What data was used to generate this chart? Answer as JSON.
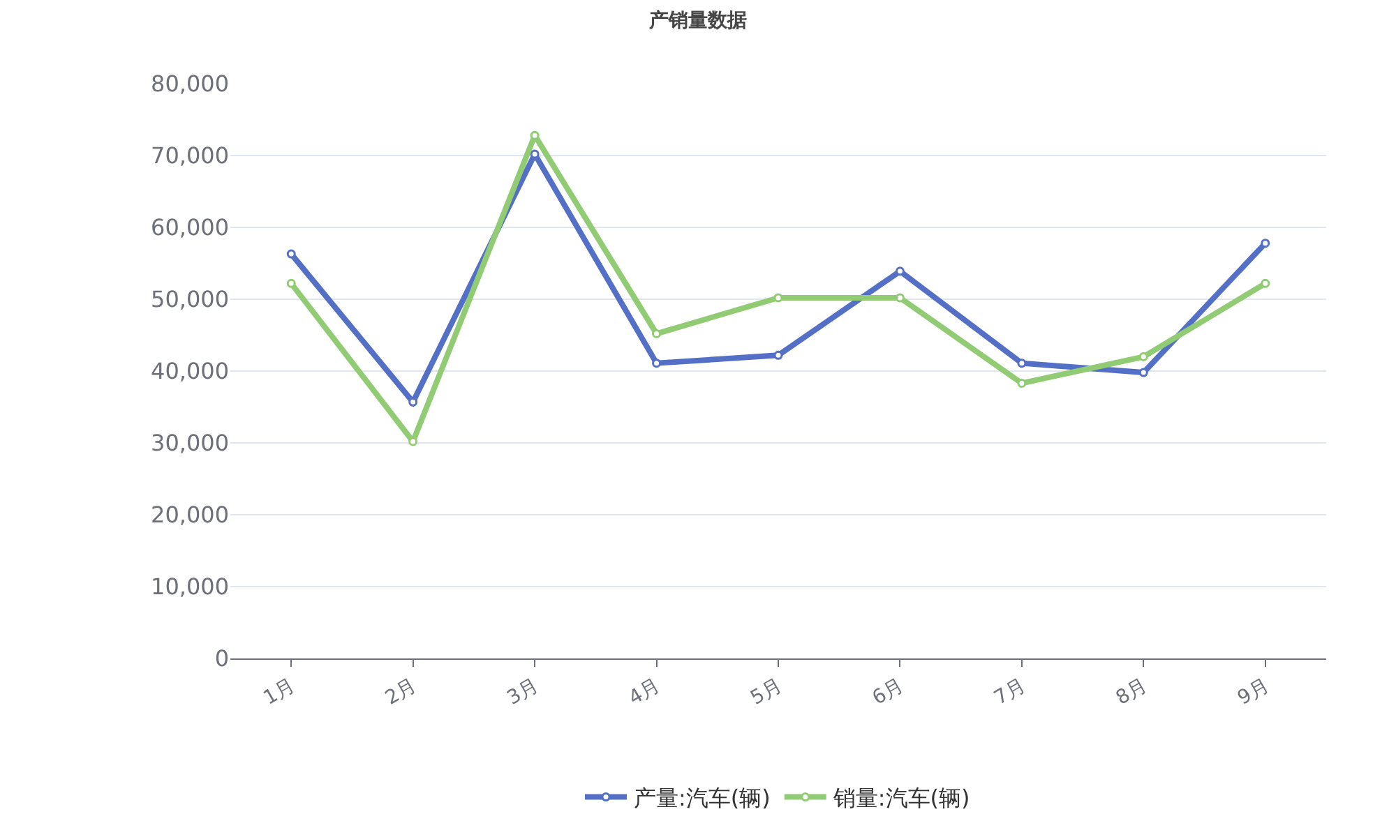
{
  "chart_data": {
    "type": "line",
    "title": "产销量数据",
    "categories": [
      "1月",
      "2月",
      "3月",
      "4月",
      "5月",
      "6月",
      "7月",
      "8月",
      "9月"
    ],
    "series": [
      {
        "name": "产量:汽车(辆)",
        "color": "#5470c6",
        "values": [
          56300,
          35700,
          70200,
          41100,
          42200,
          53900,
          41100,
          39800,
          57800
        ]
      },
      {
        "name": "销量:汽车(辆)",
        "color": "#91cc75",
        "values": [
          52200,
          30200,
          72800,
          45200,
          50200,
          50200,
          38300,
          42000,
          52200
        ]
      }
    ],
    "ylim": [
      0,
      80000
    ],
    "yticks": [
      {
        "value": 0,
        "label": "0"
      },
      {
        "value": 10000,
        "label": "10,000"
      },
      {
        "value": 20000,
        "label": "20,000"
      },
      {
        "value": 30000,
        "label": "30,000"
      },
      {
        "value": 40000,
        "label": "40,000"
      },
      {
        "value": 50000,
        "label": "50,000"
      },
      {
        "value": 60000,
        "label": "60,000"
      },
      {
        "value": 70000,
        "label": "70,000"
      },
      {
        "value": 80000,
        "label": "80,000"
      }
    ],
    "grid": "y",
    "legend": "bottom",
    "marker": "circle",
    "line_style": "solid"
  }
}
